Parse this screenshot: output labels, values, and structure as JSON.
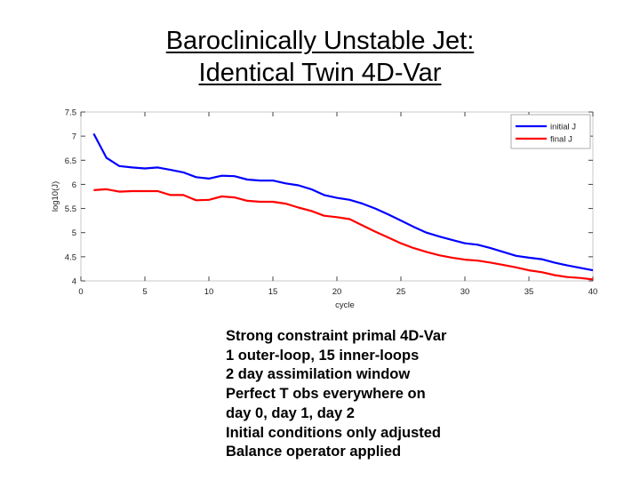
{
  "slide": {
    "title_lines": [
      "Baroclinically Unstable Jet:",
      "Identical Twin 4D-Var"
    ],
    "notes": [
      "Strong constraint primal 4D-Var",
      "1 outer-loop, 15 inner-loops",
      "2 day assimilation window",
      "Perfect T obs everywhere on",
      "day 0, day 1, day 2",
      "Initial conditions only adjusted",
      "Balance operator applied"
    ]
  },
  "chart_data": {
    "type": "line",
    "title": "",
    "xlabel": "cycle",
    "ylabel": "log10(J)",
    "xlim": [
      0,
      40
    ],
    "ylim": [
      4,
      7.5
    ],
    "xticks": [
      0,
      5,
      10,
      15,
      20,
      25,
      30,
      35,
      40
    ],
    "yticks": [
      4,
      4.5,
      5,
      5.5,
      6,
      6.5,
      7,
      7.5
    ],
    "grid": false,
    "legend_position": "top-right",
    "series": [
      {
        "name": "initial J",
        "color": "#0000ff",
        "x": [
          1,
          2,
          3,
          4,
          5,
          6,
          7,
          8,
          9,
          10,
          11,
          12,
          13,
          14,
          15,
          16,
          17,
          18,
          19,
          20,
          21,
          22,
          23,
          24,
          25,
          26,
          27,
          28,
          29,
          30,
          31,
          32,
          33,
          34,
          35,
          36,
          37,
          38,
          39,
          40
        ],
        "y": [
          7.05,
          6.55,
          6.38,
          6.35,
          6.33,
          6.35,
          6.3,
          6.25,
          6.15,
          6.12,
          6.18,
          6.17,
          6.1,
          6.08,
          6.08,
          6.02,
          5.98,
          5.9,
          5.78,
          5.72,
          5.68,
          5.6,
          5.5,
          5.38,
          5.25,
          5.12,
          5.0,
          4.92,
          4.85,
          4.78,
          4.75,
          4.68,
          4.6,
          4.52,
          4.48,
          4.45,
          4.38,
          4.32,
          4.27,
          4.22
        ]
      },
      {
        "name": "final J",
        "color": "#ff0000",
        "x": [
          1,
          2,
          3,
          4,
          5,
          6,
          7,
          8,
          9,
          10,
          11,
          12,
          13,
          14,
          15,
          16,
          17,
          18,
          19,
          20,
          21,
          22,
          23,
          24,
          25,
          26,
          27,
          28,
          29,
          30,
          31,
          32,
          33,
          34,
          35,
          36,
          37,
          38,
          39,
          40
        ],
        "y": [
          5.88,
          5.9,
          5.85,
          5.86,
          5.86,
          5.86,
          5.78,
          5.78,
          5.67,
          5.68,
          5.75,
          5.73,
          5.66,
          5.64,
          5.64,
          5.6,
          5.52,
          5.45,
          5.35,
          5.32,
          5.28,
          5.15,
          5.02,
          4.9,
          4.78,
          4.68,
          4.6,
          4.53,
          4.48,
          4.44,
          4.42,
          4.38,
          4.33,
          4.28,
          4.22,
          4.18,
          4.12,
          4.08,
          4.06,
          4.03
        ]
      }
    ]
  }
}
